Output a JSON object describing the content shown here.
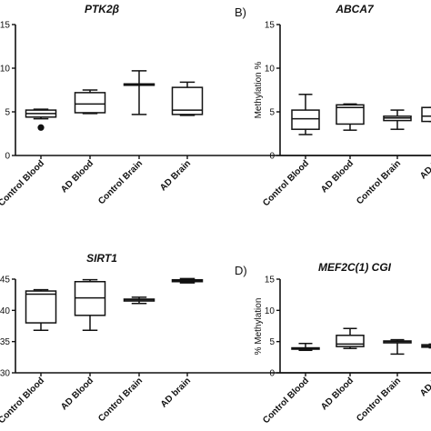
{
  "chart_data": [
    {
      "type": "box",
      "title": "PTK2β",
      "panel_label": "",
      "ylabel": "",
      "ylim": [
        0,
        15
      ],
      "yticks": [
        "0",
        "5",
        "10",
        "15"
      ],
      "categories": [
        "Control Blood",
        "AD Blood",
        "Control Brain",
        "AD Brain"
      ],
      "boxes": [
        {
          "min": 4.2,
          "q1": 4.4,
          "median": 4.8,
          "q3": 5.2,
          "max": 5.3
        },
        {
          "min": 4.8,
          "q1": 4.9,
          "median": 5.9,
          "q3": 7.2,
          "max": 7.5
        },
        {
          "min": 4.7,
          "q1": 8.2,
          "median": 8.2,
          "q3": 8.2,
          "max": 9.7
        },
        {
          "min": 4.6,
          "q1": 4.7,
          "median": 5.2,
          "q3": 7.8,
          "max": 8.4
        }
      ],
      "outliers": [
        {
          "category": "Control Blood",
          "value": 3.2
        }
      ]
    },
    {
      "type": "box",
      "title": "ABCA7",
      "panel_label": "B)",
      "ylabel": "Methylation %",
      "ylim": [
        0,
        15
      ],
      "yticks": [
        "0",
        "5",
        "10",
        "15"
      ],
      "categories": [
        "Control Blood",
        "AD Blood",
        "Control Brain",
        "AD B"
      ],
      "boxes": [
        {
          "min": 2.4,
          "q1": 3.0,
          "median": 4.2,
          "q3": 5.2,
          "max": 7.0
        },
        {
          "min": 2.9,
          "q1": 3.6,
          "median": 5.5,
          "q3": 5.8,
          "max": 5.9
        },
        {
          "min": 3.0,
          "q1": 4.0,
          "median": 4.3,
          "q3": 4.5,
          "max": 5.2
        },
        {
          "min": 3.9,
          "q1": 3.9,
          "median": 4.5,
          "q3": 5.5,
          "max": 5.5
        }
      ],
      "outliers": []
    },
    {
      "type": "box",
      "title": "SIRT1",
      "panel_label": "",
      "ylabel": "",
      "ylim": [
        30,
        45
      ],
      "yticks": [
        "30",
        "35",
        "40",
        "45"
      ],
      "categories": [
        "Control Blood",
        "AD Blood",
        "Control Brain",
        "AD brain"
      ],
      "boxes": [
        {
          "min": 36.8,
          "q1": 38.0,
          "median": 42.6,
          "q3": 43.1,
          "max": 43.3
        },
        {
          "min": 36.8,
          "q1": 39.2,
          "median": 42.0,
          "q3": 44.6,
          "max": 44.9
        },
        {
          "min": 41.1,
          "q1": 41.5,
          "median": 41.7,
          "q3": 41.8,
          "max": 42.1
        },
        {
          "min": 44.4,
          "q1": 44.6,
          "median": 44.8,
          "q3": 44.9,
          "max": 45.1
        }
      ],
      "outliers": []
    },
    {
      "type": "box",
      "title": "MEF2C(1) CGI",
      "panel_label": "D)",
      "ylabel": "% Methylation",
      "ylim": [
        0,
        15
      ],
      "yticks": [
        "0",
        "5",
        "10",
        "15"
      ],
      "categories": [
        "Control Blood",
        "AD Blood",
        "Control Brain",
        "AD B"
      ],
      "boxes": [
        {
          "min": 3.6,
          "q1": 3.8,
          "median": 3.9,
          "q3": 4.0,
          "max": 4.7
        },
        {
          "min": 3.9,
          "q1": 4.2,
          "median": 4.6,
          "q3": 6.0,
          "max": 7.1
        },
        {
          "min": 3.0,
          "q1": 4.8,
          "median": 5.0,
          "q3": 5.1,
          "max": 5.3
        },
        {
          "min": 4.0,
          "q1": 4.1,
          "median": 4.3,
          "q3": 4.5,
          "max": 4.6
        }
      ],
      "outliers": []
    }
  ]
}
